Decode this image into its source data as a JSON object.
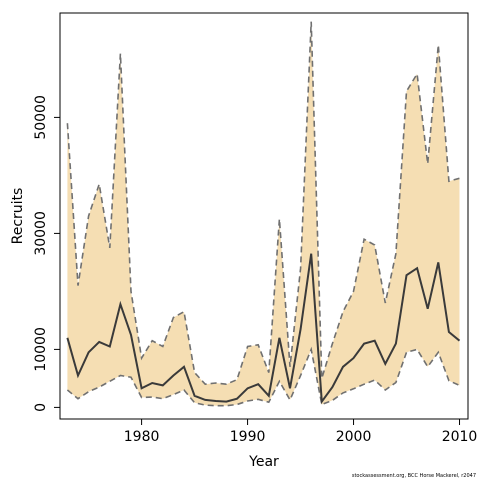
{
  "chart_data": {
    "type": "area",
    "title": "",
    "xlabel": "Year",
    "ylabel": "Recruits",
    "xlim": [
      1972.3,
      2010.8
    ],
    "ylim": [
      -2000,
      68000
    ],
    "x_ticks": [
      1980,
      1990,
      2000,
      2010
    ],
    "y_ticks": [
      0,
      10000,
      30000,
      50000
    ],
    "grid": false,
    "legend": "none",
    "colors": {
      "band": "#f5deb3",
      "median": "#3a3a3a",
      "bounds": "#707070"
    },
    "x": [
      1973,
      1974,
      1975,
      1976,
      1977,
      1978,
      1979,
      1980,
      1981,
      1982,
      1983,
      1984,
      1985,
      1986,
      1987,
      1988,
      1989,
      1990,
      1991,
      1992,
      1993,
      1994,
      1995,
      1996,
      1997,
      1998,
      1999,
      2000,
      2001,
      2002,
      2003,
      2004,
      2005,
      2006,
      2007,
      2008,
      2009,
      2010
    ],
    "series": [
      {
        "role": "upper",
        "values": [
          49000,
          21000,
          33000,
          38500,
          27500,
          61000,
          20000,
          8500,
          11500,
          10500,
          15500,
          16500,
          6000,
          4000,
          4200,
          4000,
          4800,
          10500,
          10800,
          6000,
          32500,
          7000,
          24000,
          66500,
          5000,
          11000,
          16500,
          20000,
          29000,
          28000,
          18000,
          26500,
          54500,
          57500,
          42000,
          62500,
          39000,
          39500
        ]
      },
      {
        "role": "median",
        "values": [
          12000,
          5500,
          9500,
          11300,
          10500,
          17800,
          12500,
          3300,
          4200,
          3800,
          5500,
          7000,
          2000,
          1300,
          1100,
          1000,
          1500,
          3300,
          4000,
          2000,
          12000,
          3300,
          13500,
          26500,
          1000,
          3500,
          7000,
          8500,
          11000,
          11500,
          7500,
          11000,
          22800,
          24000,
          17000,
          25000,
          13000,
          11500
        ]
      },
      {
        "role": "lower",
        "values": [
          3000,
          1500,
          2700,
          3500,
          4500,
          5500,
          5200,
          1700,
          1800,
          1500,
          2200,
          3000,
          800,
          400,
          300,
          300,
          500,
          1100,
          1400,
          900,
          4500,
          1300,
          5500,
          10000,
          500,
          1200,
          2500,
          3200,
          4000,
          4700,
          3000,
          4300,
          9500,
          10000,
          7000,
          9500,
          4600,
          3800
        ]
      }
    ]
  },
  "credit": "stockassessment.org, BCC Horse Mackerel, r2047"
}
